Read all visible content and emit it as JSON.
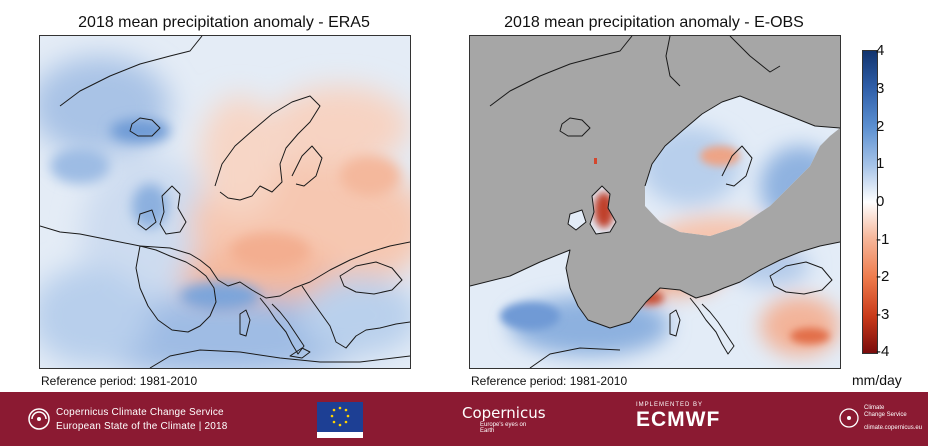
{
  "maps": [
    {
      "title": "2018 mean precipitation anomaly - ERA5",
      "reference": "Reference period: 1981-2010"
    },
    {
      "title": "2018 mean precipitation anomaly - E-OBS",
      "reference": "Reference period: 1981-2010"
    }
  ],
  "colorbar": {
    "ticks": [
      "4",
      "3",
      "2",
      "1",
      "0",
      "-1",
      "-2",
      "-3",
      "-4"
    ],
    "unit": "mm/day",
    "range": [
      -4,
      4
    ],
    "colors": {
      "high": "#1a3f7a",
      "mid_high": "#5b8fd0",
      "zero": "#ffffff",
      "mid_low": "#f08a60",
      "low": "#8b1010"
    }
  },
  "colors": {
    "footer": "#8b1a32",
    "ocean_eobs": "#a6a6a6"
  },
  "footer": {
    "line1": "Copernicus Climate Change Service",
    "line2": "European State of the Climate | 2018",
    "copernicus": "Copernicus",
    "copernicus_sub": "Europe's eyes on Earth",
    "ecmwf_top": "IMPLEMENTED BY",
    "ecmwf": "ECMWF",
    "c3s_line1": "Climate",
    "c3s_line2": "Change Service",
    "c3s_url": "climate.copernicus.eu"
  },
  "icons": [
    "c3s-logo-icon",
    "eu-flag-icon",
    "copernicus-logo-icon",
    "ecmwf-logo-icon"
  ]
}
